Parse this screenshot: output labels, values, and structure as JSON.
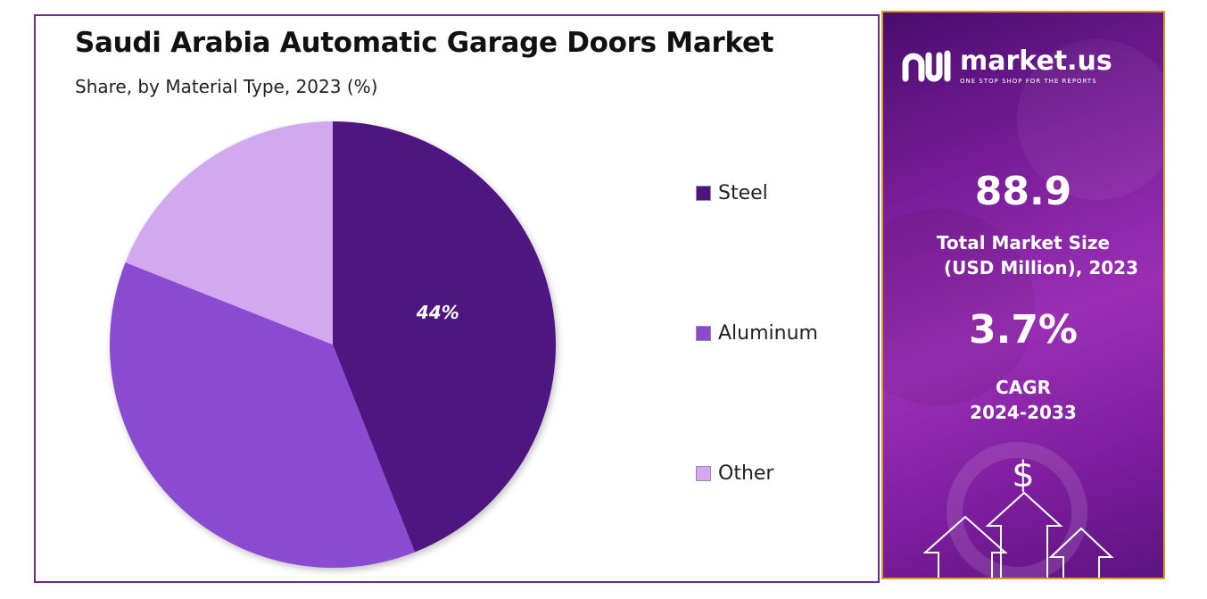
{
  "chart_data": {
    "type": "pie",
    "title": "Saudi Arabia Automatic Garage Doors Market",
    "subtitle": "Share, by Material Type, 2023 (%)",
    "categories": [
      "Steel",
      "Aluminum",
      "Other"
    ],
    "values": [
      44,
      37,
      19
    ],
    "data_labels": [
      "44%",
      "",
      ""
    ],
    "colors": [
      "#4e1480",
      "#8a4bd1",
      "#d2a8ee"
    ],
    "legend_placement": "right"
  },
  "info_panel": {
    "brand": "market.us",
    "tagline": "ONE STOP SHOP FOR THE REPORTS",
    "market_size_value": "88.9",
    "market_size_label_line1": "Total Market Size",
    "market_size_label_line2": "(USD Million), 2023",
    "cagr_value": "3.7%",
    "cagr_label": "CAGR",
    "cagr_period": "2024-2033",
    "dollar_symbol": "$",
    "accent_color": "#d99a2b"
  }
}
